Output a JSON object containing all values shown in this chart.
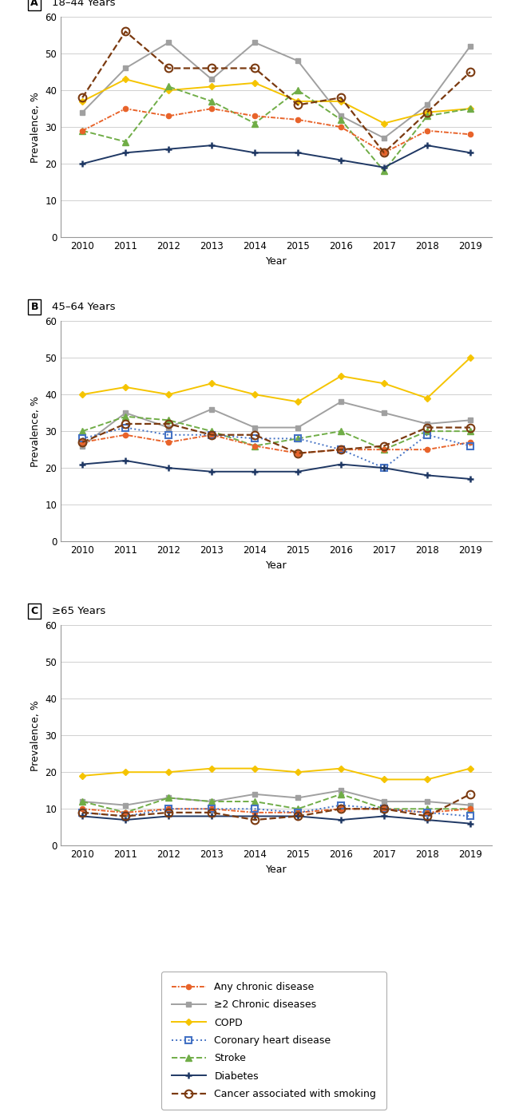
{
  "years": [
    2010,
    2011,
    2012,
    2013,
    2014,
    2015,
    2016,
    2017,
    2018,
    2019
  ],
  "panel_A": {
    "label": "A",
    "title": "18–44 Years",
    "any_chronic": [
      29,
      35,
      33,
      35,
      33,
      32,
      30,
      23,
      29,
      28
    ],
    "ge2_chronic": [
      34,
      46,
      53,
      43,
      53,
      48,
      33,
      27,
      36,
      52
    ],
    "copd": [
      37,
      43,
      40,
      41,
      42,
      37,
      37,
      31,
      34,
      35
    ],
    "coronary": [
      null,
      null,
      null,
      null,
      null,
      null,
      null,
      null,
      null,
      null
    ],
    "stroke": [
      29,
      26,
      41,
      37,
      31,
      40,
      32,
      18,
      33,
      35
    ],
    "diabetes": [
      20,
      23,
      24,
      25,
      23,
      23,
      21,
      19,
      25,
      23
    ],
    "cancer": [
      38,
      56,
      46,
      46,
      46,
      36,
      38,
      23,
      34,
      45
    ]
  },
  "panel_B": {
    "label": "B",
    "title": "45–64 Years",
    "any_chronic": [
      27,
      29,
      27,
      29,
      26,
      24,
      25,
      25,
      25,
      27
    ],
    "ge2_chronic": [
      26,
      35,
      31,
      36,
      31,
      31,
      38,
      35,
      32,
      33
    ],
    "copd": [
      40,
      42,
      40,
      43,
      40,
      38,
      45,
      43,
      39,
      50
    ],
    "coronary": [
      28,
      31,
      29,
      29,
      28,
      28,
      25,
      20,
      29,
      26
    ],
    "stroke": [
      30,
      34,
      33,
      30,
      26,
      28,
      30,
      25,
      30,
      30
    ],
    "diabetes": [
      21,
      22,
      20,
      19,
      19,
      19,
      21,
      20,
      18,
      17
    ],
    "cancer": [
      27,
      32,
      32,
      29,
      29,
      24,
      25,
      26,
      31,
      31
    ]
  },
  "panel_C": {
    "label": "C",
    "title": "≥65 Years",
    "any_chronic": [
      10,
      9,
      10,
      10,
      9,
      9,
      10,
      10,
      9,
      10
    ],
    "ge2_chronic": [
      12,
      11,
      13,
      12,
      14,
      13,
      15,
      12,
      12,
      11
    ],
    "copd": [
      19,
      20,
      20,
      21,
      21,
      20,
      21,
      18,
      18,
      21
    ],
    "coronary": [
      9,
      8,
      10,
      10,
      10,
      9,
      11,
      10,
      9,
      8
    ],
    "stroke": [
      12,
      9,
      13,
      12,
      12,
      10,
      14,
      10,
      10,
      10
    ],
    "diabetes": [
      8,
      7,
      8,
      8,
      8,
      8,
      7,
      8,
      7,
      6
    ],
    "cancer": [
      9,
      8,
      9,
      9,
      7,
      8,
      10,
      10,
      8,
      14
    ]
  },
  "colors": {
    "any_chronic": "#E8632A",
    "ge2_chronic": "#A0A0A0",
    "copd": "#F5C400",
    "coronary": "#4472C4",
    "stroke": "#70AD47",
    "diabetes": "#1F3864",
    "cancer": "#7B3A10"
  },
  "legend_labels": {
    "any_chronic": "Any chronic disease",
    "ge2_chronic": "≥2 Chronic diseases",
    "copd": "COPD",
    "coronary": "Coronary heart disease",
    "stroke": "Stroke",
    "diabetes": "Diabetes",
    "cancer": "Cancer associated with smoking"
  },
  "ylim": [
    0,
    60
  ],
  "yticks": [
    0,
    10,
    20,
    30,
    40,
    50,
    60
  ],
  "ylabel": "Prevalence, %",
  "xlabel": "Year"
}
